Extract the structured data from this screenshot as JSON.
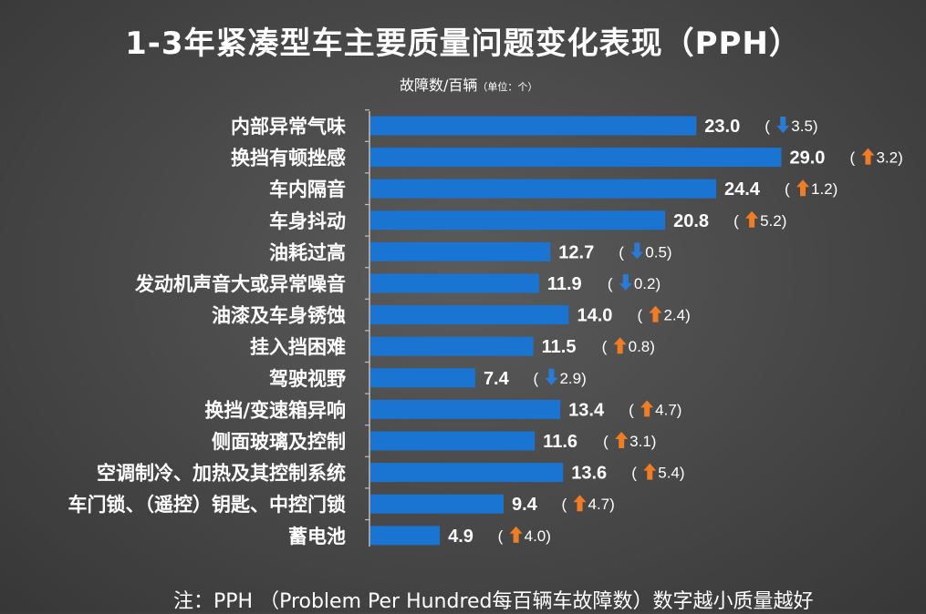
{
  "header": {
    "title": "1-3年紧凑型车主要质量问题变化表现（PPH）",
    "subtitle_main": "故障数/百辆",
    "subtitle_unit": "（单位：个）"
  },
  "footer": {
    "note": "注：PPH （Problem Per Hundred每百辆车故障数）数字越小质量越好"
  },
  "colors": {
    "bar": "#1a74d1",
    "up_arrow": "#f07d26",
    "down_arrow": "#2a7bd6",
    "text": "#ffffff",
    "axis": "#bfbfbf"
  },
  "chart_data": {
    "type": "bar",
    "orientation": "horizontal",
    "title": "1-3年紧凑型车主要质量问题变化表现（PPH）",
    "xlabel": "故障数/百辆（单位：个）",
    "ylabel": "",
    "xlim": [
      0,
      30
    ],
    "categories": [
      "内部异常气味",
      "换挡有顿挫感",
      "车内隔音",
      "车身抖动",
      "油耗过高",
      "发动机声音大或异常噪音",
      "油漆及车身锈蚀",
      "挂入挡困难",
      "驾驶视野",
      "换挡/变速箱异响",
      "侧面玻璃及控制",
      "空调制冷、加热及其控制系统",
      "车门锁、（遥控）钥匙、中控门锁",
      "蓄电池"
    ],
    "values": [
      23.0,
      29.0,
      24.4,
      20.8,
      12.7,
      11.9,
      14.0,
      11.5,
      7.4,
      13.4,
      11.6,
      13.6,
      9.4,
      4.9
    ],
    "value_labels": [
      "23.0",
      "29.0",
      "24.4",
      "20.8",
      "12.7",
      "11.9",
      "14.0",
      "11.5",
      "7.4",
      "13.4",
      "11.6",
      "13.6",
      "9.4",
      "4.9"
    ],
    "changes": [
      {
        "direction": "down",
        "amount": "3.5"
      },
      {
        "direction": "up",
        "amount": "3.2"
      },
      {
        "direction": "up",
        "amount": "1.2"
      },
      {
        "direction": "up",
        "amount": "5.2"
      },
      {
        "direction": "down",
        "amount": "0.5"
      },
      {
        "direction": "down",
        "amount": "0.2"
      },
      {
        "direction": "up",
        "amount": "2.4"
      },
      {
        "direction": "up",
        "amount": "0.8"
      },
      {
        "direction": "down",
        "amount": "2.9"
      },
      {
        "direction": "up",
        "amount": "4.7"
      },
      {
        "direction": "up",
        "amount": "3.1"
      },
      {
        "direction": "up",
        "amount": "5.4"
      },
      {
        "direction": "up",
        "amount": "4.7"
      },
      {
        "direction": "up",
        "amount": "4.0"
      }
    ]
  }
}
